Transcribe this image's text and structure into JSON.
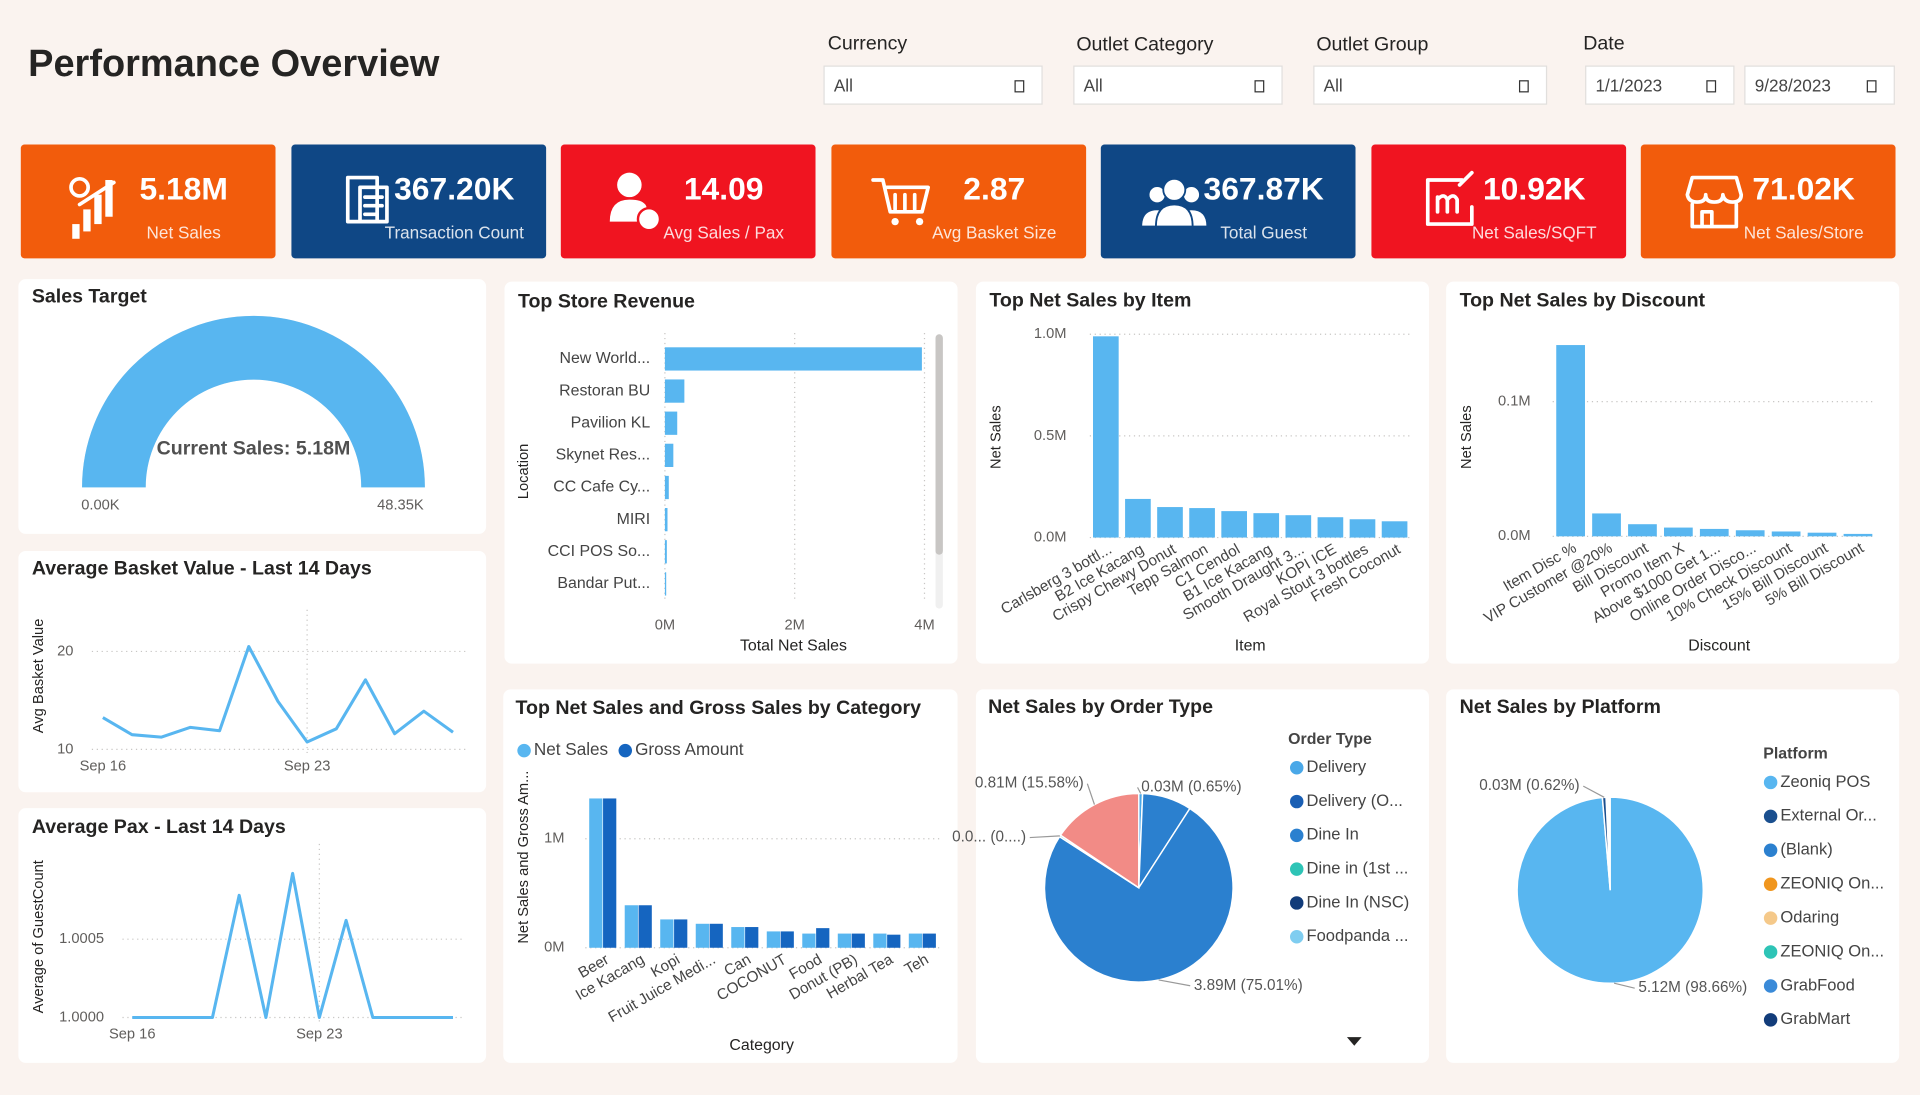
{
  "header": {
    "title": "Performance Overview"
  },
  "filters": [
    {
      "label": "Currency",
      "fields": [
        "All"
      ]
    },
    {
      "label": "Outlet Category",
      "fields": [
        "All"
      ]
    },
    {
      "label": "Outlet Group",
      "fields": [
        "All"
      ]
    },
    {
      "label": "Date",
      "fields": [
        "1/1/2023",
        "9/28/2023"
      ]
    }
  ],
  "kpis": [
    {
      "value": "5.18M",
      "label": "Net Sales",
      "color": "#f25c0c"
    },
    {
      "value": "367.20K",
      "label": "Transaction Count",
      "color": "#0f4785"
    },
    {
      "value": "14.09",
      "label": "Avg Sales / Pax",
      "color": "#f01420"
    },
    {
      "value": "2.87",
      "label": "Avg Basket Size",
      "color": "#f25c0c"
    },
    {
      "value": "367.87K",
      "label": "Total Guest",
      "color": "#0f4785"
    },
    {
      "value": "10.92K",
      "label": "Net Sales/SQFT",
      "color": "#f01420"
    },
    {
      "value": "71.02K",
      "label": "Net Sales/Store",
      "color": "#f25c0c"
    }
  ],
  "chart_data": [
    {
      "type": "gauge",
      "title": "Sales Target",
      "value": 5180000,
      "value_label": "Current Sales: 5.18M",
      "range": [
        0,
        48350
      ],
      "ticks": [
        {
          "value": 0,
          "label": "0.00K"
        },
        {
          "value": 48350,
          "label": "48.35K"
        }
      ],
      "color": "#58b6f0"
    },
    {
      "type": "bar",
      "horizontal": true,
      "title": "Top Store Revenue",
      "categories": [
        "New World...",
        "Restoran BU",
        "Pavilion KL",
        "Skynet Res...",
        "CC Cafe Cy...",
        "MIRI",
        "CCI POS So...",
        "Bandar Put..."
      ],
      "values": [
        3960000,
        300000,
        190000,
        130000,
        60000,
        40000,
        30000,
        20000
      ],
      "xlim": [
        0,
        4000000
      ],
      "xticks": [
        {
          "value": 0,
          "label": "0M"
        },
        {
          "value": 2000000,
          "label": "2M"
        },
        {
          "value": 4000000,
          "label": "4M"
        }
      ],
      "xlabel": "Total Net Sales",
      "ylabel": "Location",
      "color": "#58b6f0",
      "grid": true
    },
    {
      "type": "bar",
      "title": "Top Net Sales by Item",
      "categories": [
        "Carlsberg 3 bottl...",
        "B2 Ice Kacang",
        "Crispy Chewy Donut",
        "Tepp Salmon",
        "C1 Cendol",
        "B1 Ice Kacang",
        "Smooth Draught 3...",
        "KOPI ICE",
        "Royal Stout 3 bottles",
        "Fresh Coconut"
      ],
      "values": [
        990000,
        190000,
        150000,
        145000,
        130000,
        120000,
        110000,
        100000,
        90000,
        80000
      ],
      "ylim": [
        0,
        1000000
      ],
      "yticks": [
        {
          "value": 0,
          "label": "0.0M"
        },
        {
          "value": 500000,
          "label": "0.5M"
        },
        {
          "value": 1000000,
          "label": "1.0M"
        }
      ],
      "xlabel": "Item",
      "ylabel": "Net Sales",
      "color": "#58b6f0",
      "grid": true
    },
    {
      "type": "bar",
      "title": "Top Net Sales by Discount",
      "categories": [
        "Item Disc %",
        "VIP Customer @20%",
        "Bill Discount",
        "Promo Item X",
        "Above $1000 Get 1...",
        "Online Order Disco...",
        "10% Check Discount",
        "15% Bill Discount",
        "5% Bill Discount"
      ],
      "values": [
        142000,
        17000,
        9000,
        6500,
        5500,
        4500,
        3600,
        2700,
        1800
      ],
      "ylim": [
        0,
        150000
      ],
      "yticks": [
        {
          "value": 0,
          "label": "0.0M"
        },
        {
          "value": 100000,
          "label": "0.1M"
        }
      ],
      "xlabel": "Discount",
      "ylabel": "Net Sales",
      "color": "#58b6f0",
      "grid": true
    },
    {
      "type": "line",
      "title": "Average Basket Value - Last 14 Days",
      "categories": [
        "Sep 16",
        null,
        null,
        null,
        null,
        null,
        null,
        "Sep 23",
        null,
        null,
        null,
        null,
        null
      ],
      "values": [
        13.25,
        11.5,
        11.25,
        12.25,
        11.9,
        20.5,
        14.9,
        10.75,
        12.1,
        17.1,
        11.6,
        13.9,
        11.75
      ],
      "ylim": [
        9.6,
        23
      ],
      "yticks": [
        10,
        20
      ],
      "ylabel": "Avg Basket Value",
      "color": "#58b6f0",
      "grid": true
    },
    {
      "type": "line",
      "title": "Average Pax - Last 14 Days",
      "categories": [
        "Sep 16",
        null,
        null,
        null,
        null,
        null,
        null,
        "Sep 23",
        null,
        null,
        null,
        null,
        null
      ],
      "values": [
        1,
        1,
        1,
        1,
        1.00078,
        1,
        1.00092,
        1,
        1.00062,
        1,
        1,
        1,
        1
      ],
      "ylim": [
        0.99997,
        1.00103
      ],
      "yticks": [
        {
          "value": 1,
          "label": "1.0000"
        },
        {
          "value": 1.0005,
          "label": "1.0005"
        }
      ],
      "ylabel": "Average of GuestCount",
      "color": "#58b6f0",
      "grid": true
    },
    {
      "type": "bar",
      "title": "Top Net Sales and Gross Sales by Category",
      "categories": [
        "Beer",
        "Ice Kacang",
        "Kopi",
        "Fruit Juice Medi...",
        "Can",
        "COCONUT",
        "Food",
        "Donut (PB)",
        "Herbal Tea",
        "Teh"
      ],
      "series": [
        {
          "name": "Net Sales",
          "color": "#58b6f0",
          "values": [
            1370000,
            390000,
            260000,
            220000,
            190000,
            150000,
            130000,
            130000,
            130000,
            130000
          ]
        },
        {
          "name": "Gross Amount",
          "color": "#1565c0",
          "values": [
            1370000,
            390000,
            260000,
            220000,
            190000,
            150000,
            180000,
            130000,
            120000,
            130000
          ]
        }
      ],
      "ylim": [
        0,
        1500000
      ],
      "yticks": [
        {
          "value": 0,
          "label": "0M"
        },
        {
          "value": 1000000,
          "label": "1M"
        }
      ],
      "xlabel": "Category",
      "ylabel": "Net Sales and Gross Am...",
      "grid": true
    },
    {
      "type": "pie",
      "title": "Net Sales by Order Type",
      "legend_title": "Order Type",
      "legend": [
        {
          "name": "Delivery",
          "color": "#4aa8e8"
        },
        {
          "name": "Delivery (O...",
          "color": "#1a5fb4"
        },
        {
          "name": "Dine In",
          "color": "#2b80cf"
        },
        {
          "name": "Dine in (1st ...",
          "color": "#2ec4b6"
        },
        {
          "name": "Dine In (NSC)",
          "color": "#123c7a"
        },
        {
          "name": "Foodpanda ...",
          "color": "#7fcdf0"
        }
      ],
      "slices": [
        {
          "value": 0.65,
          "value_label": "0.03M (0.65%)",
          "color": "#4aa8e8"
        },
        {
          "value": 8.46,
          "color": "#2b80cf"
        },
        {
          "value": 75.01,
          "value_label": "3.89M (75.01%)",
          "color": "#2b80cf"
        },
        {
          "value": 0.3,
          "value_label": "0.0... (0....)",
          "color": "#2ec4b6"
        },
        {
          "value": 15.58,
          "value_label": "0.81M (15.58%)",
          "color": "#f28b86"
        }
      ]
    },
    {
      "type": "pie",
      "title": "Net Sales by Platform",
      "legend_title": "Platform",
      "legend": [
        {
          "name": "Zeoniq POS",
          "color": "#58b6f0"
        },
        {
          "name": "External Or...",
          "color": "#1a4f8f"
        },
        {
          "name": "(Blank)",
          "color": "#2b80cf"
        },
        {
          "name": "ZEONIQ On...",
          "color": "#f0961e"
        },
        {
          "name": "Odaring",
          "color": "#f5c98a"
        },
        {
          "name": "ZEONIQ On...",
          "color": "#2ec4b6"
        },
        {
          "name": "GrabFood",
          "color": "#3a8ad8"
        },
        {
          "name": "GrabMart",
          "color": "#123c7a"
        }
      ],
      "slices": [
        {
          "value": 98.66,
          "value_label": "5.12M (98.66%)",
          "color": "#58b6f0"
        },
        {
          "value": 0.62,
          "value_label": "0.03M (0.62%)",
          "color": "#1a4f8f"
        }
      ]
    }
  ]
}
